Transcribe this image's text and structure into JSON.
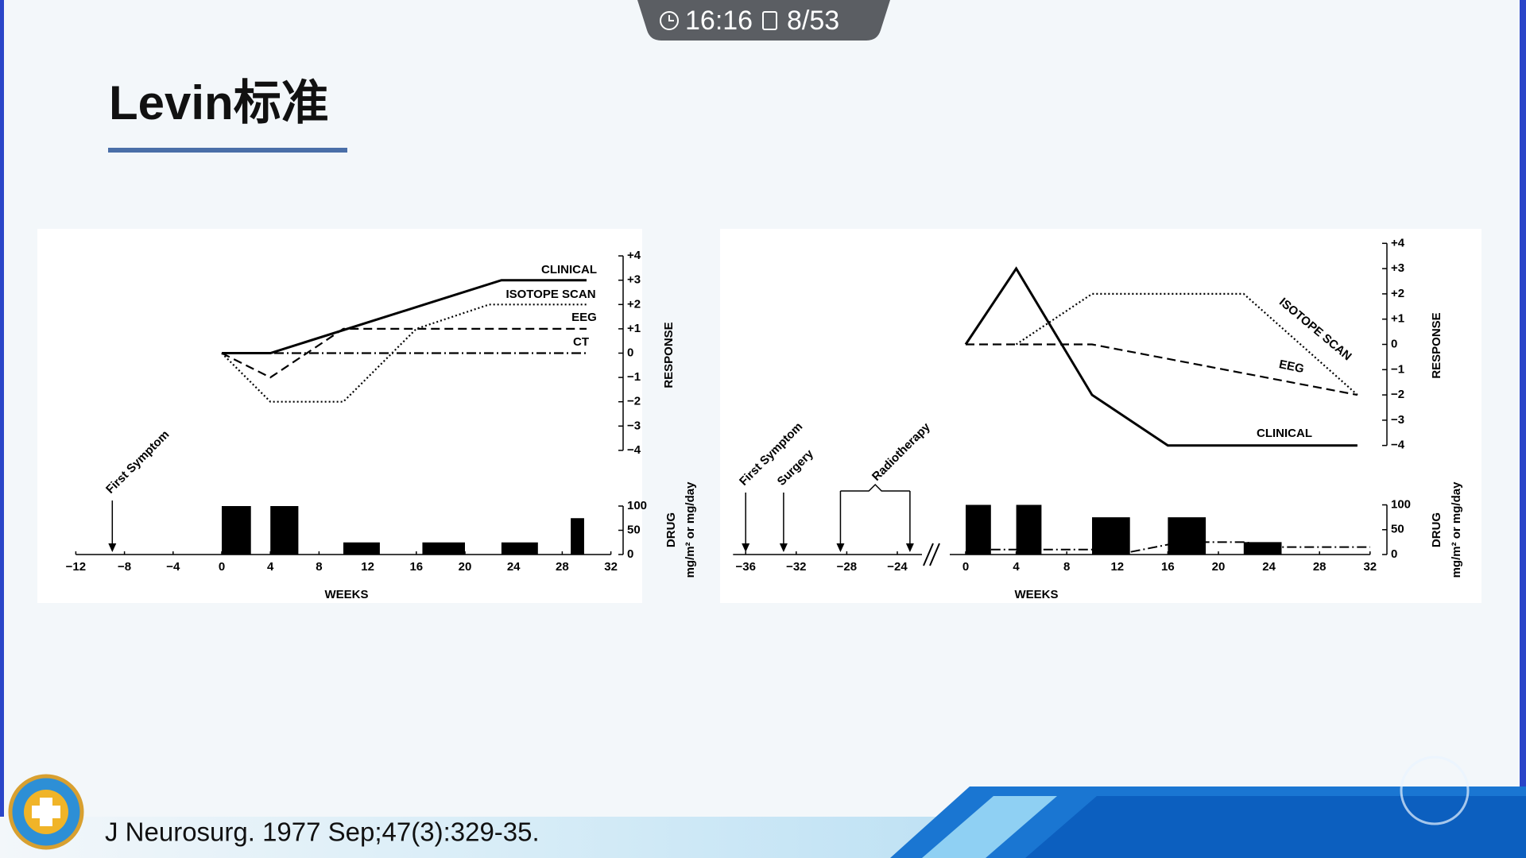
{
  "status_bar": {
    "time": "16:16",
    "page": "8/53"
  },
  "slide": {
    "title": "Levin标准",
    "citation": "J Neurosurg. 1977 Sep;47(3):329-35."
  },
  "chart_data": [
    {
      "type": "line",
      "xlabel": "WEEKS",
      "ylabel": "RESPONSE",
      "y2label": "DRUG",
      "y2unit": "mg/m² or mg/day",
      "xlim": [
        -12,
        32
      ],
      "xticks": [
        {
          "value": -12,
          "label": "−12"
        },
        {
          "value": -8,
          "label": "−8"
        },
        {
          "value": -4,
          "label": "−4"
        },
        0,
        4,
        8,
        12,
        16,
        20,
        24,
        28,
        32
      ],
      "ylim": [
        -4,
        4
      ],
      "yticks": [
        {
          "value": 4,
          "label": "+4"
        },
        {
          "value": 3,
          "label": "+3"
        },
        {
          "value": 2,
          "label": "+2"
        },
        {
          "value": 1,
          "label": "+1"
        },
        0,
        {
          "value": -1,
          "label": "−1"
        },
        {
          "value": -2,
          "label": "−2"
        },
        {
          "value": -3,
          "label": "−3"
        },
        {
          "value": -4,
          "label": "−4"
        }
      ],
      "y2lim": [
        0,
        100
      ],
      "y2ticks": [
        0,
        50,
        100
      ],
      "series": [
        {
          "name": "CLINICAL",
          "color": "#000000",
          "style": "solid",
          "x": [
            0,
            4,
            23,
            30
          ],
          "values": [
            0,
            0,
            3,
            3
          ]
        },
        {
          "name": "ISOTOPE SCAN",
          "color": "#000000",
          "style": "dotted",
          "x": [
            0,
            4,
            10,
            16,
            22,
            30
          ],
          "values": [
            0,
            -2,
            -2,
            1,
            2,
            2
          ]
        },
        {
          "name": "EEG",
          "color": "#000000",
          "style": "dashed",
          "x": [
            0,
            4,
            10,
            30
          ],
          "values": [
            0,
            -1,
            1,
            1
          ]
        },
        {
          "name": "CT",
          "color": "#000000",
          "style": "dashdot",
          "x": [
            0,
            30
          ],
          "values": [
            0,
            0
          ]
        }
      ],
      "drug_bars": {
        "color": "#000000",
        "starts": [
          0,
          4,
          10,
          16.5,
          23,
          28.7
        ],
        "ends": [
          2.4,
          6.3,
          13,
          20,
          26,
          29.8
        ],
        "values": [
          100,
          100,
          25,
          25,
          25,
          75
        ]
      },
      "annotations": [
        {
          "text": "First Symptom",
          "x": [
            -9
          ]
        }
      ]
    },
    {
      "type": "line",
      "xlabel": "WEEKS",
      "ylabel": "RESPONSE",
      "y2label": "DRUG",
      "y2unit": "mg/m² or mg/day",
      "xlim": [
        -37,
        32
      ],
      "xticks": [
        {
          "value": -36,
          "label": "−36"
        },
        {
          "value": -32,
          "label": "−32"
        },
        {
          "value": -28,
          "label": "−28"
        },
        {
          "value": -24,
          "label": "−24"
        },
        0,
        4,
        8,
        12,
        16,
        20,
        24,
        28,
        32
      ],
      "ylim": [
        -4,
        4
      ],
      "yticks": [
        {
          "value": 4,
          "label": "+4"
        },
        {
          "value": 3,
          "label": "+3"
        },
        {
          "value": 2,
          "label": "+2"
        },
        {
          "value": 1,
          "label": "+1"
        },
        0,
        {
          "value": -1,
          "label": "−1"
        },
        {
          "value": -2,
          "label": "−2"
        },
        {
          "value": -3,
          "label": "−3"
        },
        {
          "value": -4,
          "label": "−4"
        }
      ],
      "y2lim": [
        0,
        100
      ],
      "y2ticks": [
        0,
        50,
        100
      ],
      "series": [
        {
          "name": "CLINICAL",
          "color": "#000000",
          "style": "solid",
          "x": [
            0,
            4,
            10,
            16,
            31
          ],
          "values": [
            0,
            3,
            -2,
            -4,
            -4
          ]
        },
        {
          "name": "ISOTOPE SCAN",
          "color": "#000000",
          "style": "dotted",
          "x": [
            4,
            10,
            22,
            31
          ],
          "values": [
            0,
            2,
            2,
            -2
          ]
        },
        {
          "name": "EEG",
          "color": "#000000",
          "style": "dashed",
          "x": [
            0,
            10,
            31
          ],
          "values": [
            0,
            0,
            -2
          ]
        }
      ],
      "drug_bars": {
        "color": "#000000",
        "starts": [
          0,
          4,
          10,
          16,
          22
        ],
        "ends": [
          2,
          6,
          13,
          19,
          25
        ],
        "values": [
          100,
          100,
          75,
          75,
          25
        ]
      },
      "drug_line": {
        "style": "dashdot",
        "x": [
          2,
          4,
          6,
          10,
          13,
          16,
          19,
          22,
          25,
          32
        ],
        "values": [
          10,
          10,
          10,
          10,
          5,
          20,
          25,
          25,
          15,
          15
        ]
      },
      "annotations": [
        {
          "text": "First Symptom",
          "x": [
            -36
          ]
        },
        {
          "text": "Surgery",
          "x": [
            -33
          ]
        },
        {
          "text": "Radiotherapy",
          "x": [
            -28.5,
            -23
          ]
        }
      ]
    }
  ]
}
